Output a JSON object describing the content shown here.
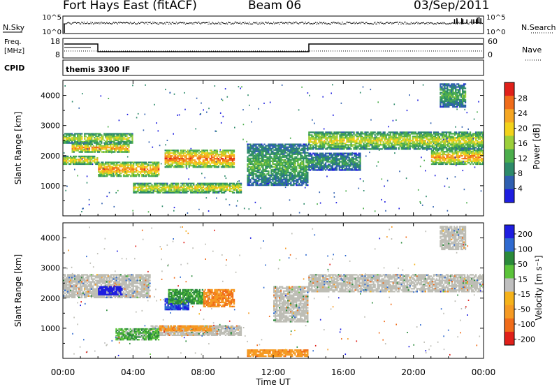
{
  "header": {
    "station": "Fort Hays East (fitACF)",
    "beam": "Beam 06",
    "date": "03/Sep/2011"
  },
  "top_panels": {
    "nsky_label": "N.Sky",
    "nsky_ticks": [
      "10^5",
      "10^0"
    ],
    "nsearch_label": "N.Search",
    "nsearch_ticks": [
      "10^5",
      "10^0"
    ],
    "freq_label": "Freq.",
    "freq_unit": "[MHz]",
    "freq_ticks": [
      "18",
      "8"
    ],
    "nave_label": "Nave",
    "nave_ticks": [
      "60",
      "0"
    ],
    "cpid_label": "CPID",
    "cpid_value": "themis 3300 IF"
  },
  "x_axis": {
    "label": "Time UT",
    "ticks": [
      "00:00",
      "04:00",
      "08:00",
      "12:00",
      "16:00",
      "20:00",
      "00:00"
    ]
  },
  "panels": [
    {
      "name": "power",
      "ylabel": "Slant Range [km]",
      "colorbar_label": "Power [dB]",
      "colorbar_ticks": [
        "28",
        "24",
        "20",
        "16",
        "12",
        "8",
        "4"
      ]
    },
    {
      "name": "velocity",
      "ylabel": "Slant Range [km]",
      "colorbar_label": "Velocity [m s⁻¹]",
      "colorbar_ticks": [
        "200",
        "100",
        "50",
        "15",
        "-15",
        "-50",
        "-100",
        "-200"
      ]
    }
  ],
  "y_ticks": [
    "4000",
    "3000",
    "2000",
    "1000"
  ],
  "colors": {
    "power_scale": [
      "#1e1ee0",
      "#2f5fb0",
      "#2d8a6a",
      "#4cae4c",
      "#9ccf3a",
      "#f2d21a",
      "#f5a623",
      "#f06c1a",
      "#e0201a"
    ],
    "velocity_scale": [
      "#1e1ee0",
      "#2f6ad0",
      "#2a8a3a",
      "#5bc33a",
      "#bfbfbf",
      "#f5b21a",
      "#f59a23",
      "#f06c1a",
      "#e0201a"
    ],
    "ground_scatter": "#bdbdb5"
  },
  "chart_data": [
    {
      "type": "heatmap",
      "title": "Power",
      "xlabel": "Time UT",
      "ylabel": "Slant Range [km]",
      "xlim": [
        0,
        24
      ],
      "ylim": [
        0,
        4500
      ],
      "colorbar_label": "Power [dB]",
      "color_range": [
        0,
        30
      ],
      "bands": [
        {
          "t0": 0.0,
          "t1": 4.0,
          "r0": 2400,
          "r1": 2750,
          "level": 18
        },
        {
          "t0": 0.5,
          "t1": 3.8,
          "r0": 2100,
          "r1": 2400,
          "level": 25
        },
        {
          "t0": 0.0,
          "t1": 2.0,
          "r0": 1700,
          "r1": 2000,
          "level": 22
        },
        {
          "t0": 2.0,
          "t1": 5.5,
          "r0": 1300,
          "r1": 1800,
          "level": 24
        },
        {
          "t0": 5.8,
          "t1": 9.8,
          "r0": 1600,
          "r1": 2200,
          "level": 26
        },
        {
          "t0": 4.0,
          "t1": 10.2,
          "r0": 750,
          "r1": 1100,
          "level": 20
        },
        {
          "t0": 10.5,
          "t1": 14.0,
          "r0": 1000,
          "r1": 2400,
          "level": 12
        },
        {
          "t0": 14.0,
          "t1": 24.0,
          "r0": 2200,
          "r1": 2800,
          "level": 18
        },
        {
          "t0": 14.0,
          "t1": 17.0,
          "r0": 1500,
          "r1": 2100,
          "level": 10
        },
        {
          "t0": 21.0,
          "t1": 24.0,
          "r0": 1700,
          "r1": 2200,
          "level": 24
        },
        {
          "t0": 21.5,
          "t1": 23.0,
          "r0": 3600,
          "r1": 4400,
          "level": 12
        }
      ]
    },
    {
      "type": "heatmap",
      "title": "Velocity",
      "xlabel": "Time UT",
      "ylabel": "Slant Range [km]",
      "xlim": [
        0,
        24
      ],
      "ylim": [
        0,
        4500
      ],
      "colorbar_label": "Velocity [m s⁻¹]",
      "color_range": [
        -200,
        200
      ],
      "bands": [
        {
          "t0": 0.0,
          "t1": 5.0,
          "r0": 2000,
          "r1": 2800,
          "kind": "ground"
        },
        {
          "t0": 2.0,
          "t1": 3.4,
          "r0": 2100,
          "r1": 2400,
          "value": 180
        },
        {
          "t0": 5.8,
          "t1": 7.2,
          "r0": 1600,
          "r1": 2000,
          "value": 150
        },
        {
          "t0": 6.0,
          "t1": 8.0,
          "r0": 1800,
          "r1": 2300,
          "value": 40
        },
        {
          "t0": 8.0,
          "t1": 9.8,
          "r0": 1700,
          "r1": 2300,
          "value": -70
        },
        {
          "t0": 5.0,
          "t1": 10.2,
          "r0": 750,
          "r1": 1100,
          "kind": "ground"
        },
        {
          "t0": 3.0,
          "t1": 5.5,
          "r0": 600,
          "r1": 1000,
          "value": 30
        },
        {
          "t0": 5.5,
          "t1": 8.5,
          "r0": 900,
          "r1": 1100,
          "value": -60
        },
        {
          "t0": 14.0,
          "t1": 24.0,
          "r0": 2200,
          "r1": 2800,
          "kind": "ground"
        },
        {
          "t0": 12.0,
          "t1": 14.0,
          "r0": 1200,
          "r1": 2400,
          "kind": "ground"
        },
        {
          "t0": 10.5,
          "t1": 14.0,
          "r0": 50,
          "r1": 300,
          "value": -60
        },
        {
          "t0": 21.5,
          "t1": 23.0,
          "r0": 3600,
          "r1": 4400,
          "kind": "ground"
        }
      ]
    }
  ]
}
